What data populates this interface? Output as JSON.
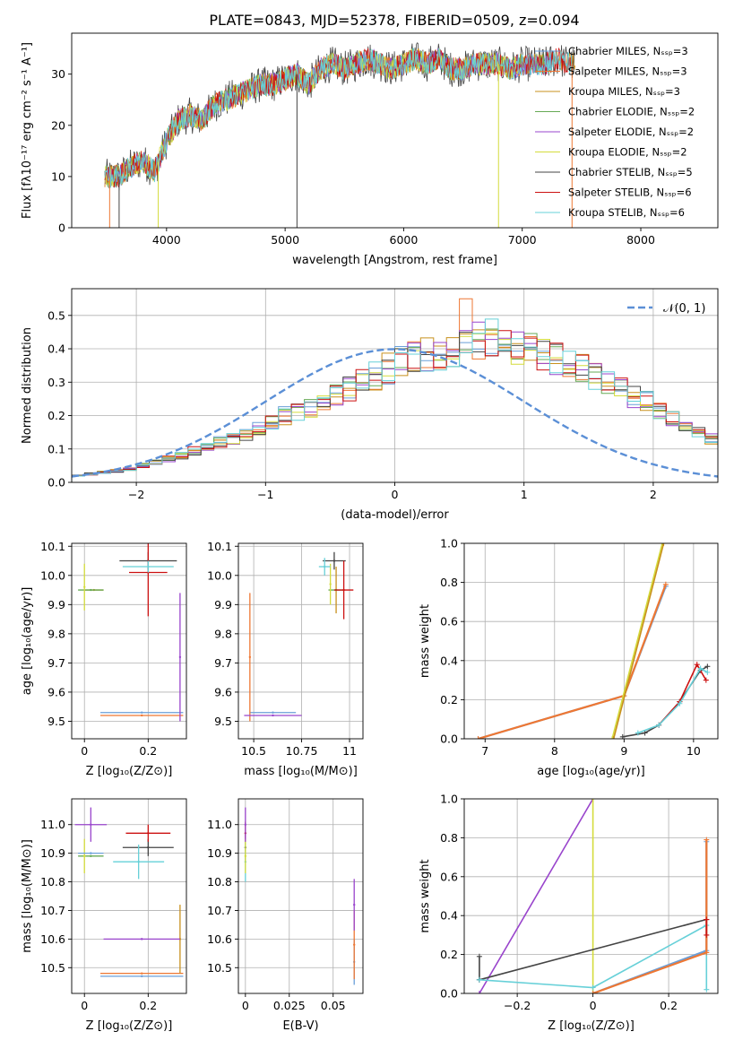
{
  "colors": [
    "#6a9fd8",
    "#ee7733",
    "#c8901c",
    "#66aa55",
    "#9944cc",
    "#d4dc3c",
    "#444444",
    "#cc1111",
    "#66d0d8"
  ],
  "chart_data": [
    {
      "type": "line",
      "title": "PLATE=0843, MJD=52378, FIBERID=0509, z=0.094",
      "xlabel": "wavelength [Angstrom, rest frame]",
      "ylabel": "Flux [fλ10⁻¹⁷ erg cm⁻² s⁻¹ A⁻¹]",
      "xlim": [
        3200,
        8650
      ],
      "ylim": [
        0,
        38
      ],
      "xticks": [
        4000,
        5000,
        6000,
        7000,
        8000
      ],
      "yticks": [
        0,
        10,
        20,
        30
      ],
      "grid": false,
      "legend_position": "top-right",
      "series": [
        {
          "name": "Chabrier MILES, Nₛₛₚ=3"
        },
        {
          "name": "Salpeter MILES, Nₛₛₚ=3"
        },
        {
          "name": "Kroupa MILES, Nₛₛₚ=3"
        },
        {
          "name": "Chabrier ELODIE, Nₛₛₚ=2"
        },
        {
          "name": "Salpeter ELODIE, Nₛₛₚ=2"
        },
        {
          "name": "Kroupa ELODIE, Nₛₛₚ=2"
        },
        {
          "name": "Chabrier STELIB, Nₛₛₚ=5"
        },
        {
          "name": "Salpeter STELIB, Nₛₛₚ=6"
        },
        {
          "name": "Kroupa STELIB, Nₛₛₚ=6"
        }
      ],
      "spectrum_anchors": {
        "x": [
          3500,
          3600,
          3700,
          3800,
          3900,
          4000,
          4100,
          4200,
          4300,
          4400,
          4500,
          4600,
          4700,
          4800,
          4900,
          5000,
          5100,
          5200,
          5300,
          5400,
          5500,
          5600,
          5700,
          5800,
          5900,
          6000,
          6100,
          6200,
          6300,
          6400,
          6500,
          6600,
          6700,
          6800,
          6900,
          7000,
          7100,
          7200,
          7300,
          7400
        ],
        "y": [
          10,
          10,
          12,
          13,
          11,
          17,
          21,
          22,
          21,
          24,
          25,
          26,
          27,
          28,
          28,
          29,
          30,
          28,
          31,
          32,
          31,
          32,
          33,
          32,
          31,
          32,
          33,
          32,
          33,
          31,
          31,
          32,
          32,
          32,
          31,
          32,
          32,
          32,
          33,
          32
        ]
      }
    },
    {
      "type": "bar",
      "xlabel": "(data-model)/error",
      "ylabel": "Normed distribution",
      "xlim": [
        -2.5,
        2.5
      ],
      "ylim": [
        0,
        0.58
      ],
      "xticks": [
        -2,
        -1,
        0,
        1,
        2
      ],
      "yticks": [
        0.0,
        0.1,
        0.2,
        0.3,
        0.4,
        0.5
      ],
      "grid": true,
      "legend": "𝒩(0, 1)",
      "legend_position": "top-right",
      "bin_width": 0.1,
      "bin_start": -2.5,
      "base_histogram": [
        0.02,
        0.025,
        0.03,
        0.035,
        0.04,
        0.05,
        0.06,
        0.07,
        0.08,
        0.095,
        0.11,
        0.12,
        0.13,
        0.145,
        0.16,
        0.18,
        0.2,
        0.21,
        0.22,
        0.24,
        0.26,
        0.28,
        0.3,
        0.32,
        0.34,
        0.36,
        0.37,
        0.38,
        0.39,
        0.4,
        0.41,
        0.42,
        0.43,
        0.42,
        0.41,
        0.4,
        0.39,
        0.37,
        0.35,
        0.34,
        0.32,
        0.3,
        0.28,
        0.26,
        0.24,
        0.21,
        0.19,
        0.17,
        0.15,
        0.13,
        0.12,
        0.11,
        0.1,
        0.09,
        0.08,
        0.07,
        0.06,
        0.05,
        0.045,
        0.04,
        0.035,
        0.03,
        0.028,
        0.025,
        0.022,
        0.02,
        0.018,
        0.016,
        0.015,
        0.015
      ]
    },
    {
      "type": "scatter",
      "xlabel": "Z [log₁₀(Z/Z⊙)]",
      "ylabel": "age  [log₁₀(age/yr)]",
      "xlim": [
        -0.04,
        0.32
      ],
      "ylim": [
        9.44,
        10.11
      ],
      "xticks": [
        0.0,
        0.2
      ],
      "yticks": [
        9.5,
        9.6,
        9.7,
        9.8,
        9.9,
        10.0,
        10.1
      ],
      "grid": true,
      "points": [
        {
          "c": 0,
          "x": 0.18,
          "y": 9.53,
          "xerr": 0.13,
          "yerr": 0.0
        },
        {
          "c": 1,
          "x": 0.18,
          "y": 9.52,
          "xerr": 0.13,
          "yerr": 0.0
        },
        {
          "c": 2,
          "x": 0.03,
          "y": 9.95,
          "xerr": 0.03,
          "yerr": 0.0
        },
        {
          "c": 3,
          "x": 0.02,
          "y": 9.95,
          "xerr": 0.04,
          "yerr": 0.0
        },
        {
          "c": 4,
          "x": 0.3,
          "y": 9.72,
          "xerr": 0.0,
          "yerr": 0.22
        },
        {
          "c": 5,
          "x": 0.0,
          "y": 9.96,
          "xerr": 0.0,
          "yerr": 0.08
        },
        {
          "c": 6,
          "x": 0.2,
          "y": 10.05,
          "xerr": 0.09,
          "yerr": 0.03
        },
        {
          "c": 7,
          "x": 0.2,
          "y": 10.01,
          "xerr": 0.06,
          "yerr": 0.15
        },
        {
          "c": 8,
          "x": 0.2,
          "y": 10.03,
          "xerr": 0.08,
          "yerr": 0.02
        }
      ]
    },
    {
      "type": "scatter",
      "xlabel": "mass [log₁₀(M/M⊙)]",
      "ylabel": "",
      "xlim": [
        10.42,
        11.07
      ],
      "ylim": [
        9.44,
        10.11
      ],
      "xticks": [
        10.5,
        10.75,
        11.0
      ],
      "yticks": [
        9.5,
        9.6,
        9.7,
        9.8,
        9.9,
        10.0,
        10.1
      ],
      "grid": true,
      "points": [
        {
          "c": 0,
          "x": 10.6,
          "y": 9.53,
          "xerr": 0.12,
          "yerr": 0.0
        },
        {
          "c": 1,
          "x": 10.48,
          "y": 9.72,
          "xerr": 0.0,
          "yerr": 0.22
        },
        {
          "c": 2,
          "x": 10.93,
          "y": 9.95,
          "xerr": 0.0,
          "yerr": 0.08
        },
        {
          "c": 3,
          "x": 10.93,
          "y": 9.95,
          "xerr": 0.04,
          "yerr": 0.0
        },
        {
          "c": 4,
          "x": 10.6,
          "y": 9.52,
          "xerr": 0.15,
          "yerr": 0.0
        },
        {
          "c": 5,
          "x": 10.9,
          "y": 9.97,
          "xerr": 0.0,
          "yerr": 0.07
        },
        {
          "c": 6,
          "x": 10.92,
          "y": 10.05,
          "xerr": 0.06,
          "yerr": 0.03
        },
        {
          "c": 7,
          "x": 10.97,
          "y": 9.95,
          "xerr": 0.05,
          "yerr": 0.1
        },
        {
          "c": 8,
          "x": 10.87,
          "y": 10.03,
          "xerr": 0.03,
          "yerr": 0.03
        }
      ]
    },
    {
      "type": "line",
      "xlabel": "age  [log₁₀(age/yr)]",
      "ylabel": "mass weight",
      "xlim": [
        6.7,
        10.35
      ],
      "ylim": [
        0,
        1
      ],
      "xticks": [
        7,
        8,
        9,
        10
      ],
      "yticks": [
        0.0,
        0.2,
        0.4,
        0.6,
        0.8,
        1.0
      ],
      "grid": true,
      "lines": [
        {
          "c": 0,
          "x": [
            6.9,
            9.0,
            9.6
          ],
          "y": [
            0.0,
            0.22,
            0.78
          ]
        },
        {
          "c": 1,
          "x": 6.9,
          "x2": null,
          "xs": [
            6.9,
            9.0,
            9.6
          ],
          "ys": [
            0.0,
            0.22,
            0.79
          ]
        },
        {
          "c": 5,
          "x": [
            8.83,
            9.55
          ],
          "y": [
            0.0,
            1.0
          ]
        },
        {
          "c": 2,
          "x": [
            8.85,
            9.57
          ],
          "y": [
            0.0,
            1.0
          ]
        },
        {
          "c": 6,
          "x": [
            8.98,
            9.3,
            9.5,
            9.8,
            10.1,
            10.2
          ],
          "y": [
            0.01,
            0.03,
            0.07,
            0.19,
            0.35,
            0.37
          ]
        },
        {
          "c": 7,
          "x": [
            9.5,
            9.8,
            10.05,
            10.18
          ],
          "y": [
            0.07,
            0.19,
            0.38,
            0.3
          ]
        },
        {
          "c": 8,
          "x": [
            9.2,
            9.5,
            9.8,
            10.1,
            10.2
          ],
          "y": [
            0.03,
            0.07,
            0.18,
            0.36,
            0.34
          ]
        }
      ]
    },
    {
      "type": "scatter",
      "xlabel": "Z [log₁₀(Z/Z⊙)]",
      "ylabel": "mass [log₁₀(M/M⊙)]",
      "xlim": [
        -0.04,
        0.32
      ],
      "ylim": [
        10.41,
        11.09
      ],
      "xticks": [
        0.0,
        0.2
      ],
      "yticks": [
        10.5,
        10.6,
        10.7,
        10.8,
        10.9,
        11.0
      ],
      "grid": true,
      "points": [
        {
          "c": 0,
          "x": 0.18,
          "y": 10.47,
          "xerr": 0.13,
          "yerr": 0.0
        },
        {
          "c": 1,
          "x": 0.18,
          "y": 10.48,
          "xerr": 0.13,
          "yerr": 0.0
        },
        {
          "c": 2,
          "x": 0.3,
          "y": 10.6,
          "xerr": 0.0,
          "yerr": 0.12
        },
        {
          "c": 3,
          "x": 0.02,
          "y": 10.89,
          "xerr": 0.04,
          "yerr": 0.0
        },
        {
          "c": 4,
          "x": 0.18,
          "y": 10.6,
          "xerr": 0.12,
          "yerr": 0.0
        },
        {
          "c": 5,
          "x": 0.0,
          "y": 10.89,
          "xerr": 0.0,
          "yerr": 0.06
        },
        {
          "c": 6,
          "x": 0.2,
          "y": 10.92,
          "xerr": 0.08,
          "yerr": 0.03
        },
        {
          "c": 7,
          "x": 0.2,
          "y": 10.97,
          "xerr": 0.07,
          "yerr": 0.03
        },
        {
          "c": 8,
          "x": 0.17,
          "y": 10.87,
          "xerr": 0.08,
          "yerr": 0.06
        },
        {
          "c": 4,
          "x": 0.02,
          "y": 11.0,
          "xerr": 0.05,
          "yerr": 0.06
        },
        {
          "c": 0,
          "x": 0.02,
          "y": 10.9,
          "xerr": 0.04,
          "yerr": 0.0
        }
      ]
    },
    {
      "type": "scatter",
      "xlabel": "E(B-V)",
      "ylabel": "",
      "xlim": [
        -0.004,
        0.067
      ],
      "ylim": [
        10.41,
        11.09
      ],
      "xticks": [
        0.0,
        0.025,
        0.05
      ],
      "yticks": [
        10.5,
        10.6,
        10.7,
        10.8,
        10.9,
        11.0
      ],
      "grid": true,
      "points": [
        {
          "c": 0,
          "x": 0.062,
          "y": 10.52,
          "xerr": 0.0,
          "yerr": 0.08
        },
        {
          "c": 1,
          "x": 0.062,
          "y": 10.58,
          "xerr": 0.0,
          "yerr": 0.12
        },
        {
          "c": 4,
          "x": 0.062,
          "y": 10.72,
          "xerr": 0.0,
          "yerr": 0.09
        },
        {
          "c": 6,
          "x": 0.0,
          "y": 10.92,
          "xerr": 0.0,
          "yerr": 0.05
        },
        {
          "c": 7,
          "x": 0.0,
          "y": 10.97,
          "xerr": 0.0,
          "yerr": 0.04
        },
        {
          "c": 8,
          "x": 0.0,
          "y": 10.87,
          "xerr": 0.0,
          "yerr": 0.07
        },
        {
          "c": 5,
          "x": 0.0,
          "y": 10.89,
          "xerr": 0.0,
          "yerr": 0.06
        },
        {
          "c": 4,
          "x": 0.0,
          "y": 11.0,
          "xerr": 0.0,
          "yerr": 0.06
        }
      ]
    },
    {
      "type": "line",
      "xlabel": "Z [log₁₀(Z/Z⊙)]",
      "ylabel": "mass weight",
      "xlim": [
        -0.34,
        0.33
      ],
      "ylim": [
        0,
        1
      ],
      "xticks": [
        -0.2,
        0.0,
        0.2
      ],
      "yticks": [
        0.0,
        0.2,
        0.4,
        0.6,
        0.8,
        1.0
      ],
      "grid": true,
      "lines": [
        {
          "c": 4,
          "x": [
            -0.3,
            0.0
          ],
          "y": [
            0.0,
            1.0
          ]
        },
        {
          "c": 5,
          "x": [
            0.0,
            0.0
          ],
          "y": [
            0.0,
            1.0
          ]
        },
        {
          "c": 6,
          "x": [
            -0.3,
            0.3
          ],
          "y": [
            0.07,
            0.38
          ]
        },
        {
          "c": 6,
          "x": [
            -0.3,
            -0.3
          ],
          "y": [
            0.07,
            0.19
          ]
        },
        {
          "c": 8,
          "x": [
            -0.3,
            0.0,
            0.3,
            0.3
          ],
          "y": [
            0.07,
            0.03,
            0.35,
            0.02
          ]
        },
        {
          "c": 0,
          "x": [
            0.0,
            0.3,
            0.3
          ],
          "y": [
            0.0,
            0.22,
            0.78
          ]
        },
        {
          "c": 1,
          "x": [
            0.0,
            0.3,
            0.3
          ],
          "y": [
            0.0,
            0.21,
            0.79
          ]
        },
        {
          "c": 7,
          "x": [
            0.3,
            0.3
          ],
          "y": [
            0.3,
            0.38
          ]
        }
      ]
    }
  ]
}
